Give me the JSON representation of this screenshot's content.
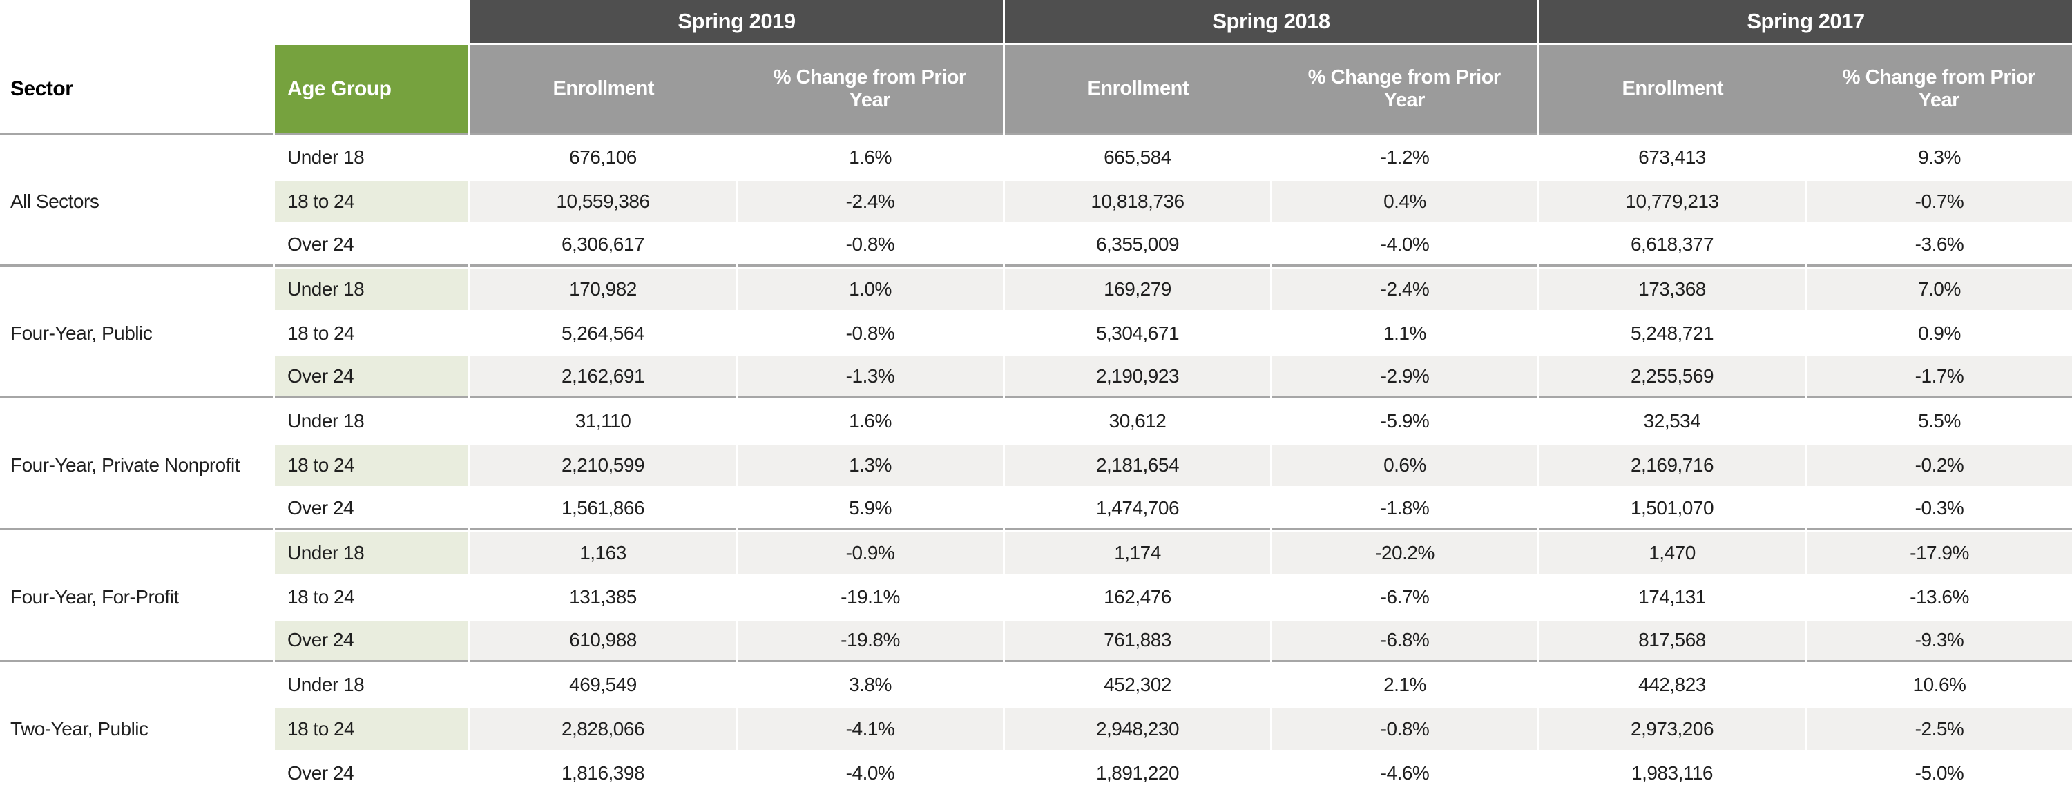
{
  "colors": {
    "year_bar": "#4f4f4f",
    "subheader_gray": "#9b9b9b",
    "age_header_green": "#76a23e",
    "row_tint_green": "#e9edde",
    "row_tint_gray": "#f1f0ee",
    "separator_line": "#a6a6a6"
  },
  "chart_data": {
    "type": "table",
    "column_headers": {
      "sector": "Sector",
      "age_group": "Age Group",
      "year_groups": [
        {
          "year": "Spring 2019",
          "subcolumns": [
            "Enrollment",
            "% Change from Prior Year"
          ]
        },
        {
          "year": "Spring 2018",
          "subcolumns": [
            "Enrollment",
            "% Change from Prior Year"
          ]
        },
        {
          "year": "Spring 2017",
          "subcolumns": [
            "Enrollment",
            "% Change from Prior Year"
          ]
        }
      ]
    },
    "groups": [
      {
        "sector": "All Sectors",
        "rows": [
          {
            "age": "Under 18",
            "y2019": {
              "enrollment": "676,106",
              "change": "1.6%"
            },
            "y2018": {
              "enrollment": "665,584",
              "change": "-1.2%"
            },
            "y2017": {
              "enrollment": "673,413",
              "change": "9.3%"
            }
          },
          {
            "age": "18 to 24",
            "y2019": {
              "enrollment": "10,559,386",
              "change": "-2.4%"
            },
            "y2018": {
              "enrollment": "10,818,736",
              "change": "0.4%"
            },
            "y2017": {
              "enrollment": "10,779,213",
              "change": "-0.7%"
            }
          },
          {
            "age": "Over 24",
            "y2019": {
              "enrollment": "6,306,617",
              "change": "-0.8%"
            },
            "y2018": {
              "enrollment": "6,355,009",
              "change": "-4.0%"
            },
            "y2017": {
              "enrollment": "6,618,377",
              "change": "-3.6%"
            }
          }
        ]
      },
      {
        "sector": "Four-Year, Public",
        "rows": [
          {
            "age": "Under 18",
            "y2019": {
              "enrollment": "170,982",
              "change": "1.0%"
            },
            "y2018": {
              "enrollment": "169,279",
              "change": "-2.4%"
            },
            "y2017": {
              "enrollment": "173,368",
              "change": "7.0%"
            }
          },
          {
            "age": "18 to 24",
            "y2019": {
              "enrollment": "5,264,564",
              "change": "-0.8%"
            },
            "y2018": {
              "enrollment": "5,304,671",
              "change": "1.1%"
            },
            "y2017": {
              "enrollment": "5,248,721",
              "change": "0.9%"
            }
          },
          {
            "age": "Over 24",
            "y2019": {
              "enrollment": "2,162,691",
              "change": "-1.3%"
            },
            "y2018": {
              "enrollment": "2,190,923",
              "change": "-2.9%"
            },
            "y2017": {
              "enrollment": "2,255,569",
              "change": "-1.7%"
            }
          }
        ]
      },
      {
        "sector": "Four-Year, Private Nonprofit",
        "rows": [
          {
            "age": "Under 18",
            "y2019": {
              "enrollment": "31,110",
              "change": "1.6%"
            },
            "y2018": {
              "enrollment": "30,612",
              "change": "-5.9%"
            },
            "y2017": {
              "enrollment": "32,534",
              "change": "5.5%"
            }
          },
          {
            "age": "18 to 24",
            "y2019": {
              "enrollment": "2,210,599",
              "change": "1.3%"
            },
            "y2018": {
              "enrollment": "2,181,654",
              "change": "0.6%"
            },
            "y2017": {
              "enrollment": "2,169,716",
              "change": "-0.2%"
            }
          },
          {
            "age": "Over 24",
            "y2019": {
              "enrollment": "1,561,866",
              "change": "5.9%"
            },
            "y2018": {
              "enrollment": "1,474,706",
              "change": "-1.8%"
            },
            "y2017": {
              "enrollment": "1,501,070",
              "change": "-0.3%"
            }
          }
        ]
      },
      {
        "sector": "Four-Year, For-Profit",
        "rows": [
          {
            "age": "Under 18",
            "y2019": {
              "enrollment": "1,163",
              "change": "-0.9%"
            },
            "y2018": {
              "enrollment": "1,174",
              "change": "-20.2%"
            },
            "y2017": {
              "enrollment": "1,470",
              "change": "-17.9%"
            }
          },
          {
            "age": "18 to 24",
            "y2019": {
              "enrollment": "131,385",
              "change": "-19.1%"
            },
            "y2018": {
              "enrollment": "162,476",
              "change": "-6.7%"
            },
            "y2017": {
              "enrollment": "174,131",
              "change": "-13.6%"
            }
          },
          {
            "age": "Over 24",
            "y2019": {
              "enrollment": "610,988",
              "change": "-19.8%"
            },
            "y2018": {
              "enrollment": "761,883",
              "change": "-6.8%"
            },
            "y2017": {
              "enrollment": "817,568",
              "change": "-9.3%"
            }
          }
        ]
      },
      {
        "sector": "Two-Year, Public",
        "rows": [
          {
            "age": "Under 18",
            "y2019": {
              "enrollment": "469,549",
              "change": "3.8%"
            },
            "y2018": {
              "enrollment": "452,302",
              "change": "2.1%"
            },
            "y2017": {
              "enrollment": "442,823",
              "change": "10.6%"
            }
          },
          {
            "age": "18 to 24",
            "y2019": {
              "enrollment": "2,828,066",
              "change": "-4.1%"
            },
            "y2018": {
              "enrollment": "2,948,230",
              "change": "-0.8%"
            },
            "y2017": {
              "enrollment": "2,973,206",
              "change": "-2.5%"
            }
          },
          {
            "age": "Over 24",
            "y2019": {
              "enrollment": "1,816,398",
              "change": "-4.0%"
            },
            "y2018": {
              "enrollment": "1,891,220",
              "change": "-4.6%"
            },
            "y2017": {
              "enrollment": "1,983,116",
              "change": "-5.0%"
            }
          }
        ]
      }
    ]
  }
}
